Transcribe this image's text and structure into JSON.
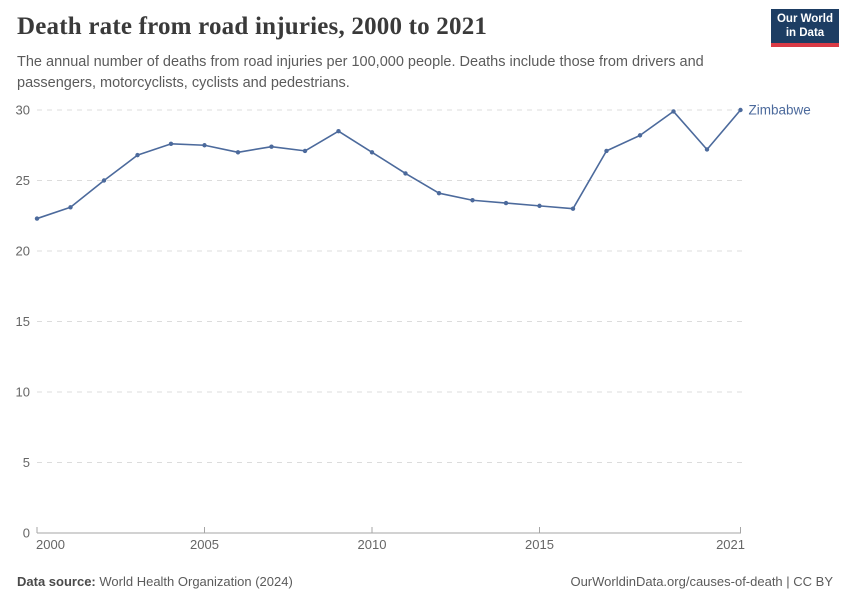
{
  "header": {
    "title": "Death rate from road injuries, 2000 to 2021",
    "subtitle": "The annual number of deaths from road injuries per 100,000 people. Deaths include those from drivers and passengers, motorcyclists, cyclists and pedestrians.",
    "logo": {
      "line1": "Our World",
      "line2": "in Data",
      "bg_color": "#1d3d63",
      "accent_color": "#d93a45"
    }
  },
  "chart_data": {
    "type": "line",
    "title": "Death rate from road injuries, 2000 to 2021",
    "xlabel": "",
    "ylabel": "",
    "x": [
      2000,
      2001,
      2002,
      2003,
      2004,
      2005,
      2006,
      2007,
      2008,
      2009,
      2010,
      2011,
      2012,
      2013,
      2014,
      2015,
      2016,
      2017,
      2018,
      2019,
      2020,
      2021
    ],
    "series": [
      {
        "name": "Zimbabwe",
        "color": "#4c6a9c",
        "values": [
          22.3,
          23.1,
          25.0,
          26.8,
          27.6,
          27.5,
          27.0,
          27.4,
          27.1,
          28.5,
          27.0,
          25.5,
          24.1,
          23.6,
          23.4,
          23.2,
          23.0,
          27.1,
          28.2,
          29.9,
          27.2,
          30.0
        ]
      }
    ],
    "xlim": [
      2000,
      2021
    ],
    "ylim": [
      0,
      30
    ],
    "x_ticks": [
      2000,
      2005,
      2010,
      2015,
      2021
    ],
    "y_ticks": [
      0,
      5,
      10,
      15,
      20,
      25,
      30
    ],
    "grid": "horizontal-dashed",
    "legend_position": "end-of-line-label",
    "end_label": "Zimbabwe"
  },
  "footer": {
    "source_label": "Data source:",
    "source_value": "World Health Organization (2024)",
    "license": "OurWorldinData.org/causes-of-death | CC BY"
  },
  "colors": {
    "line": "#4c6a9c",
    "grid": "#dcdcdc",
    "axis": "#a5a5a5",
    "tick_text": "#666666",
    "title_text": "#3a3a3a",
    "subtitle_text": "#5b5b5b"
  }
}
